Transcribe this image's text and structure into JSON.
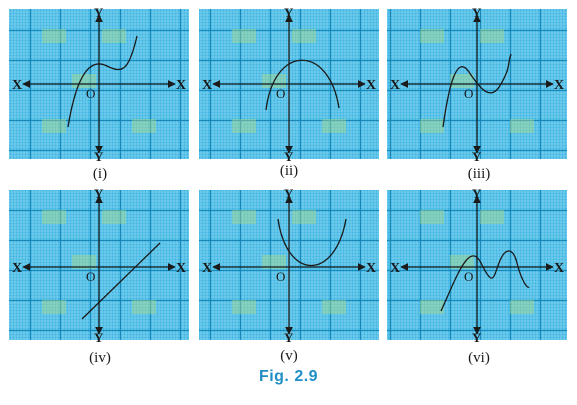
{
  "colors": {
    "grid_bg": "#3db6e2",
    "grid_minor": "#9fdcf3",
    "grid_major": "#1d86b8",
    "grid_cell_highlight": "#a9d98a",
    "axis": "#1a1a1a",
    "curve": "#1a1a1a",
    "caption": "#1f8fc7"
  },
  "axis_labels": {
    "x_left": "X",
    "x_right": "X",
    "y_top": "Y",
    "y_bottom": "Y",
    "origin": "O"
  },
  "panels": [
    {
      "label": "(i)",
      "curve": "cubic-rising"
    },
    {
      "label": "(ii)",
      "curve": "inverted-parabola"
    },
    {
      "label": "(iii)",
      "curve": "cubic-two-turns"
    },
    {
      "label": "(iv)",
      "curve": "straight-line"
    },
    {
      "label": "(v)",
      "curve": "upward-parabola"
    },
    {
      "label": "(vi)",
      "curve": "wavy-curve"
    }
  ],
  "figure_caption": "Fig.  2.9"
}
